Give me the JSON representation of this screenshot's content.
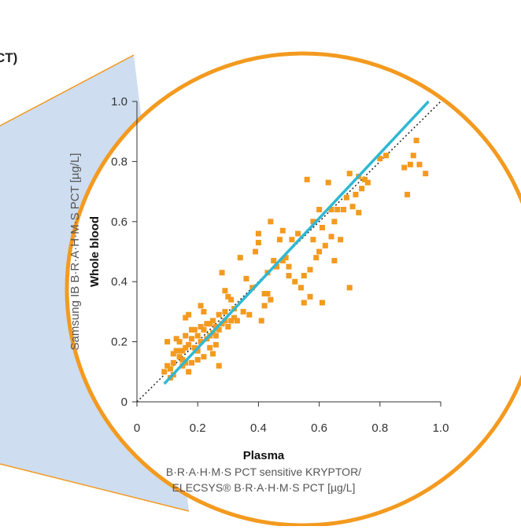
{
  "page_fragment_text": "CT)",
  "colors": {
    "circle_stroke": "#f39a1f",
    "callout_fill": "#c9d9ee",
    "points": "#f39a1f",
    "regression_line": "#2fb8d4",
    "identity_line": "#222222",
    "axis_text": "#333333"
  },
  "chart_data": {
    "type": "scatter",
    "title": "",
    "xlabel_bold": "Plasma",
    "xlabel_line1": "B·R·A·H·M·S PCT sensitive KRYPTOR/",
    "xlabel_line2": "ELECSYS® B·R·A·H·M·S PCT [µg/L]",
    "ylabel_bold": "Whole blood",
    "ylabel": "Samsung IB B·R·A·H·M·S PCT [µg/L]",
    "xlim": [
      0,
      1.0
    ],
    "ylim": [
      0,
      1.0
    ],
    "xticks": [
      "0",
      "0.2",
      "0.4",
      "0.6",
      "0.8",
      "1.0"
    ],
    "yticks": [
      "0",
      "0.2",
      "0.4",
      "0.6",
      "0.8",
      "1.0"
    ],
    "grid": false,
    "identity_line": [
      [
        0,
        0
      ],
      [
        1.0,
        1.0
      ]
    ],
    "regression_line": [
      [
        0.09,
        0.06
      ],
      [
        0.96,
        1.0
      ]
    ],
    "points": [
      [
        0.09,
        0.1
      ],
      [
        0.1,
        0.12
      ],
      [
        0.1,
        0.2
      ],
      [
        0.11,
        0.11
      ],
      [
        0.11,
        0.08
      ],
      [
        0.12,
        0.13
      ],
      [
        0.12,
        0.09
      ],
      [
        0.12,
        0.16
      ],
      [
        0.13,
        0.17
      ],
      [
        0.13,
        0.21
      ],
      [
        0.14,
        0.15
      ],
      [
        0.14,
        0.2
      ],
      [
        0.14,
        0.17
      ],
      [
        0.15,
        0.14
      ],
      [
        0.15,
        0.17
      ],
      [
        0.15,
        0.12
      ],
      [
        0.16,
        0.18
      ],
      [
        0.16,
        0.13
      ],
      [
        0.16,
        0.28
      ],
      [
        0.16,
        0.22
      ],
      [
        0.17,
        0.29
      ],
      [
        0.17,
        0.19
      ],
      [
        0.17,
        0.1
      ],
      [
        0.18,
        0.21
      ],
      [
        0.18,
        0.13
      ],
      [
        0.18,
        0.24
      ],
      [
        0.19,
        0.18
      ],
      [
        0.19,
        0.24
      ],
      [
        0.2,
        0.22
      ],
      [
        0.2,
        0.17
      ],
      [
        0.2,
        0.14
      ],
      [
        0.21,
        0.25
      ],
      [
        0.21,
        0.2
      ],
      [
        0.21,
        0.32
      ],
      [
        0.22,
        0.3
      ],
      [
        0.22,
        0.15
      ],
      [
        0.22,
        0.24
      ],
      [
        0.23,
        0.21
      ],
      [
        0.23,
        0.26
      ],
      [
        0.24,
        0.18
      ],
      [
        0.24,
        0.22
      ],
      [
        0.24,
        0.26
      ],
      [
        0.25,
        0.16
      ],
      [
        0.25,
        0.23
      ],
      [
        0.25,
        0.27
      ],
      [
        0.26,
        0.19
      ],
      [
        0.26,
        0.25
      ],
      [
        0.26,
        0.22
      ],
      [
        0.27,
        0.29
      ],
      [
        0.27,
        0.24
      ],
      [
        0.27,
        0.12
      ],
      [
        0.28,
        0.43
      ],
      [
        0.28,
        0.26
      ],
      [
        0.29,
        0.37
      ],
      [
        0.29,
        0.3
      ],
      [
        0.29,
        0.27
      ],
      [
        0.3,
        0.35
      ],
      [
        0.3,
        0.25
      ],
      [
        0.31,
        0.27
      ],
      [
        0.31,
        0.34
      ],
      [
        0.32,
        0.28
      ],
      [
        0.32,
        0.31
      ],
      [
        0.33,
        0.27
      ],
      [
        0.34,
        0.48
      ],
      [
        0.35,
        0.3
      ],
      [
        0.36,
        0.41
      ],
      [
        0.37,
        0.29
      ],
      [
        0.38,
        0.38
      ],
      [
        0.39,
        0.5
      ],
      [
        0.4,
        0.53
      ],
      [
        0.4,
        0.56
      ],
      [
        0.41,
        0.27
      ],
      [
        0.42,
        0.32
      ],
      [
        0.42,
        0.36
      ],
      [
        0.43,
        0.43
      ],
      [
        0.43,
        0.36
      ],
      [
        0.44,
        0.34
      ],
      [
        0.44,
        0.6
      ],
      [
        0.45,
        0.47
      ],
      [
        0.46,
        0.45
      ],
      [
        0.47,
        0.54
      ],
      [
        0.48,
        0.47
      ],
      [
        0.48,
        0.57
      ],
      [
        0.49,
        0.48
      ],
      [
        0.5,
        0.45
      ],
      [
        0.5,
        0.42
      ],
      [
        0.51,
        0.54
      ],
      [
        0.52,
        0.4
      ],
      [
        0.53,
        0.56
      ],
      [
        0.54,
        0.38
      ],
      [
        0.55,
        0.33
      ],
      [
        0.55,
        0.42
      ],
      [
        0.56,
        0.74
      ],
      [
        0.57,
        0.44
      ],
      [
        0.57,
        0.35
      ],
      [
        0.58,
        0.54
      ],
      [
        0.58,
        0.6
      ],
      [
        0.59,
        0.48
      ],
      [
        0.6,
        0.5
      ],
      [
        0.6,
        0.64
      ],
      [
        0.61,
        0.58
      ],
      [
        0.61,
        0.33
      ],
      [
        0.62,
        0.52
      ],
      [
        0.63,
        0.73
      ],
      [
        0.64,
        0.55
      ],
      [
        0.64,
        0.64
      ],
      [
        0.65,
        0.6
      ],
      [
        0.65,
        0.47
      ],
      [
        0.66,
        0.64
      ],
      [
        0.67,
        0.54
      ],
      [
        0.68,
        0.64
      ],
      [
        0.69,
        0.68
      ],
      [
        0.7,
        0.76
      ],
      [
        0.7,
        0.38
      ],
      [
        0.71,
        0.65
      ],
      [
        0.72,
        0.69
      ],
      [
        0.73,
        0.75
      ],
      [
        0.73,
        0.63
      ],
      [
        0.74,
        0.71
      ],
      [
        0.75,
        0.74
      ],
      [
        0.76,
        0.73
      ],
      [
        0.8,
        0.81
      ],
      [
        0.82,
        0.82
      ],
      [
        0.88,
        0.78
      ],
      [
        0.89,
        0.69
      ],
      [
        0.9,
        0.79
      ],
      [
        0.91,
        0.82
      ],
      [
        0.92,
        0.87
      ],
      [
        0.93,
        0.79
      ],
      [
        0.95,
        0.76
      ]
    ]
  }
}
